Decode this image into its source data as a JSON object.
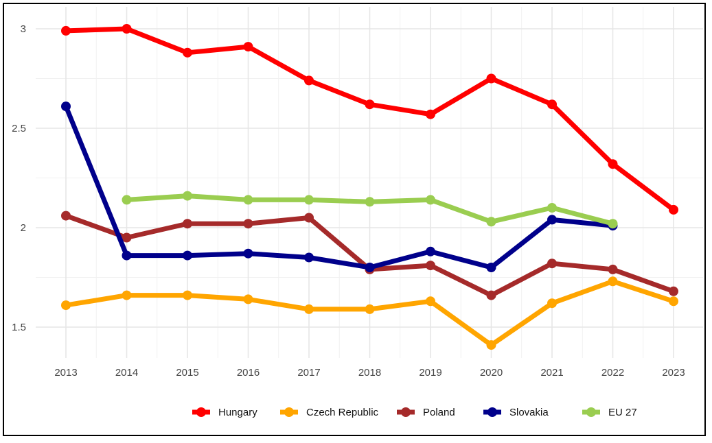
{
  "chart_data": {
    "type": "line",
    "title": "",
    "xlabel": "",
    "ylabel": "",
    "x": [
      2013,
      2014,
      2015,
      2016,
      2017,
      2018,
      2019,
      2020,
      2021,
      2022,
      2023
    ],
    "x_tick_labels": [
      "2013",
      "2014",
      "2015",
      "2016",
      "2017",
      "2018",
      "2019",
      "2020",
      "2021",
      "2022",
      "2023"
    ],
    "yticks": [
      1.5,
      2,
      2.5,
      3
    ],
    "y_tick_labels": [
      "1.5",
      "2",
      "2.5",
      "3"
    ],
    "ylim": [
      1.35,
      3.1
    ],
    "grid": true,
    "legend_position": "bottom",
    "series": [
      {
        "name": "Hungary",
        "color": "#ff0000",
        "values": [
          2.99,
          3.0,
          2.88,
          2.91,
          2.74,
          2.62,
          2.57,
          2.75,
          2.62,
          2.32,
          2.09
        ]
      },
      {
        "name": "Czech Republic",
        "color": "#ffa500",
        "values": [
          1.61,
          1.66,
          1.66,
          1.64,
          1.59,
          1.59,
          1.63,
          1.41,
          1.62,
          1.73,
          1.63
        ]
      },
      {
        "name": "Poland",
        "color": "#a52a2a",
        "values": [
          2.06,
          1.95,
          2.02,
          2.02,
          2.05,
          1.79,
          1.81,
          1.66,
          1.82,
          1.79,
          1.68
        ]
      },
      {
        "name": "Slovakia",
        "color": "#00008b",
        "values": [
          2.61,
          1.86,
          1.86,
          1.87,
          1.85,
          1.8,
          1.88,
          1.8,
          2.04,
          2.01,
          null
        ]
      },
      {
        "name": "EU 27",
        "color": "#9acd50",
        "values": [
          null,
          2.14,
          2.16,
          2.14,
          2.14,
          2.13,
          2.14,
          2.03,
          2.1,
          2.02,
          null
        ]
      }
    ]
  }
}
